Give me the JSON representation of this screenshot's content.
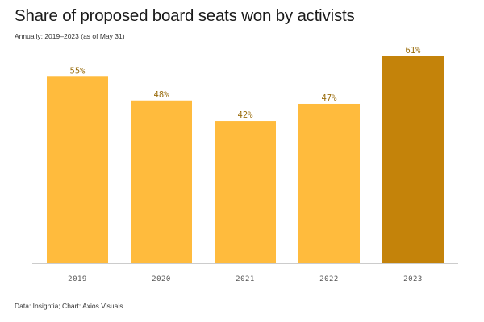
{
  "chart_data": {
    "type": "bar",
    "title": "Share of proposed board seats won by activists",
    "subtitle": "Annually; 2019–2023 (as of May 31)",
    "categories": [
      "2019",
      "2020",
      "2021",
      "2022",
      "2023"
    ],
    "values": [
      55,
      48,
      42,
      47,
      61
    ],
    "value_labels": [
      "55%",
      "48%",
      "42%",
      "47%",
      "61%"
    ],
    "ylim": [
      0,
      61
    ],
    "xlabel": "",
    "ylabel": "",
    "grid": false,
    "colors": {
      "bar": "#ffbb3d",
      "highlight": "#c4830a",
      "value_label": "#9a6d0e",
      "baseline": "#cccccc"
    },
    "highlight_index": 4
  },
  "footer": {
    "source": "Data: Insightia; Chart: Axios Visuals"
  }
}
